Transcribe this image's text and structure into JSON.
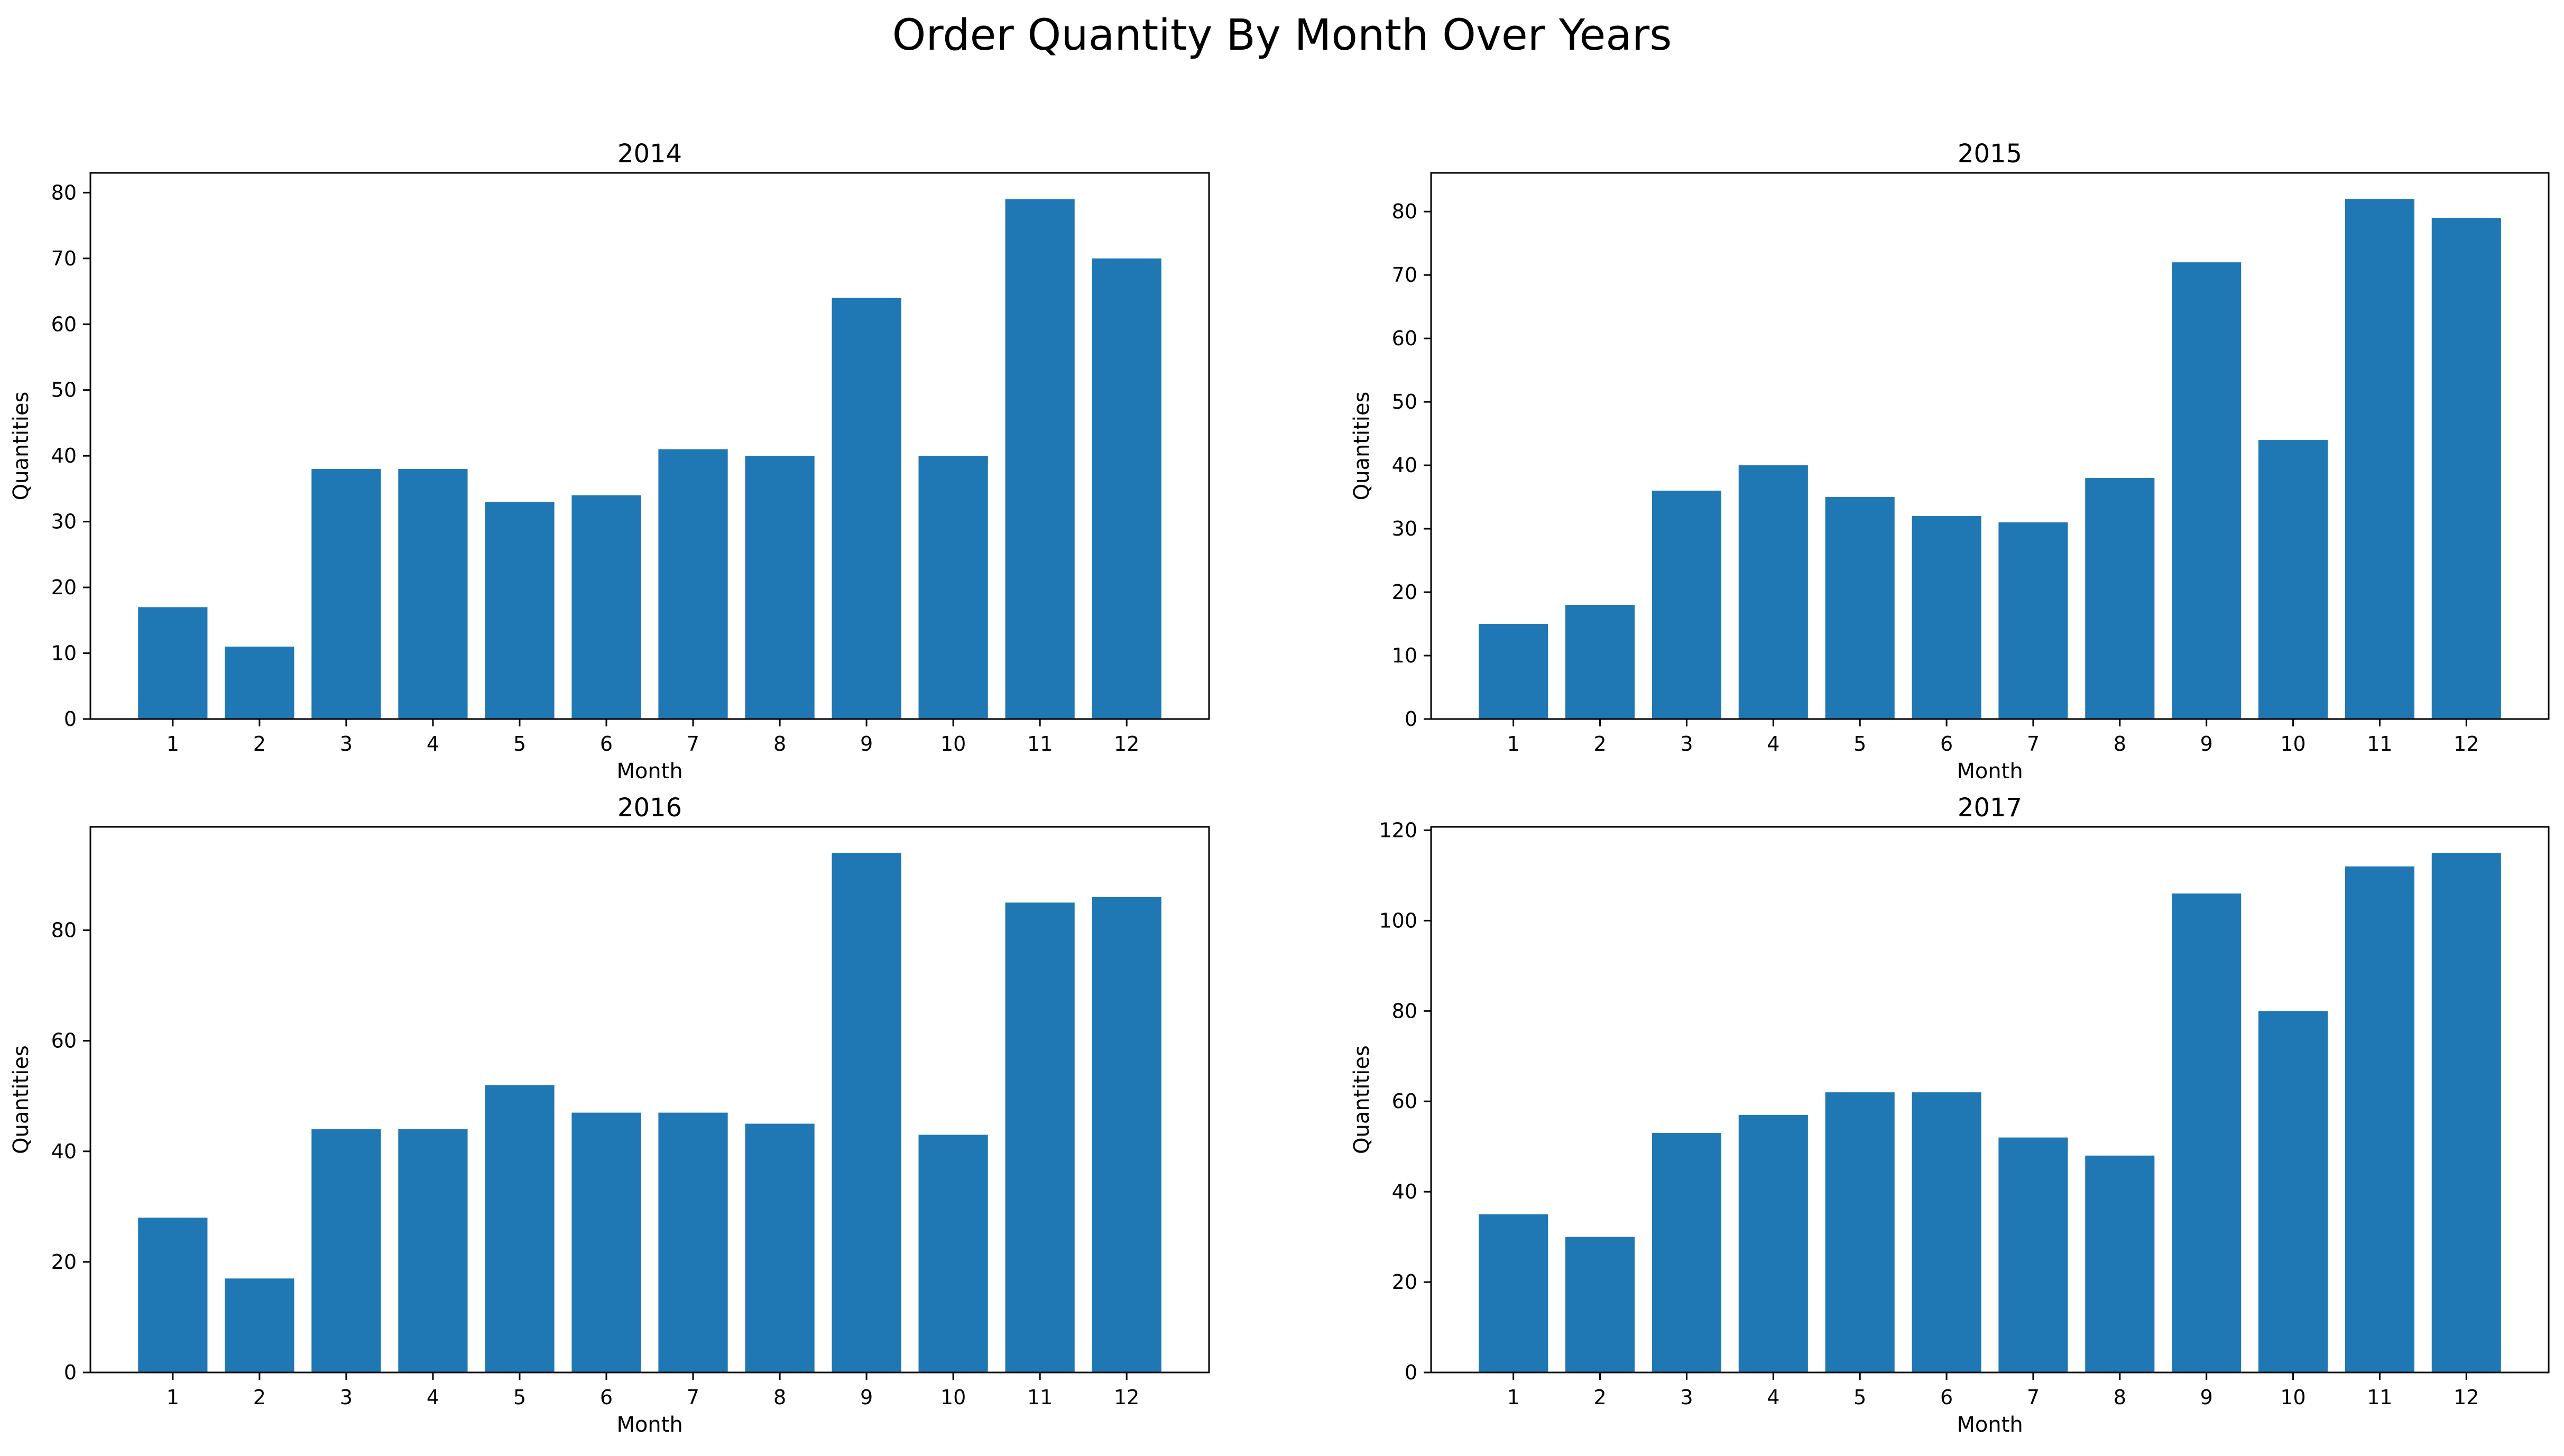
{
  "title": "Order Quantity By Month Over Years",
  "chart_data": [
    {
      "type": "bar",
      "title": "2014",
      "xlabel": "Month",
      "ylabel": "Quantities",
      "categories": [
        "1",
        "2",
        "3",
        "4",
        "5",
        "6",
        "7",
        "8",
        "9",
        "10",
        "11",
        "12"
      ],
      "values": [
        17,
        11,
        38,
        38,
        33,
        34,
        41,
        40,
        64,
        40,
        79,
        70
      ],
      "ylim": [
        0,
        83
      ],
      "yticks": [
        0,
        10,
        20,
        30,
        40,
        50,
        60,
        70,
        80
      ],
      "color": "#1f77b4",
      "grid": false
    },
    {
      "type": "bar",
      "title": "2015",
      "xlabel": "Month",
      "ylabel": "Quantities",
      "categories": [
        "1",
        "2",
        "3",
        "4",
        "5",
        "6",
        "7",
        "8",
        "9",
        "10",
        "11",
        "12"
      ],
      "values": [
        15,
        18,
        36,
        40,
        35,
        32,
        31,
        38,
        72,
        44,
        82,
        79
      ],
      "ylim": [
        0,
        86.1
      ],
      "yticks": [
        0,
        10,
        20,
        30,
        40,
        50,
        60,
        70,
        80
      ],
      "color": "#1f77b4",
      "grid": false
    },
    {
      "type": "bar",
      "title": "2016",
      "xlabel": "Month",
      "ylabel": "Quantities",
      "categories": [
        "1",
        "2",
        "3",
        "4",
        "5",
        "6",
        "7",
        "8",
        "9",
        "10",
        "11",
        "12"
      ],
      "values": [
        28,
        17,
        44,
        44,
        52,
        47,
        47,
        45,
        94,
        43,
        85,
        86
      ],
      "ylim": [
        0,
        98.7
      ],
      "yticks": [
        0,
        20,
        40,
        60,
        80
      ],
      "color": "#1f77b4",
      "grid": false
    },
    {
      "type": "bar",
      "title": "2017",
      "xlabel": "Month",
      "ylabel": "Quantities",
      "categories": [
        "1",
        "2",
        "3",
        "4",
        "5",
        "6",
        "7",
        "8",
        "9",
        "10",
        "11",
        "12"
      ],
      "values": [
        35,
        30,
        53,
        57,
        62,
        62,
        52,
        48,
        106,
        80,
        112,
        115
      ],
      "ylim": [
        0,
        120.75
      ],
      "yticks": [
        0,
        20,
        40,
        60,
        80,
        100,
        120
      ],
      "color": "#1f77b4",
      "grid": false
    }
  ]
}
